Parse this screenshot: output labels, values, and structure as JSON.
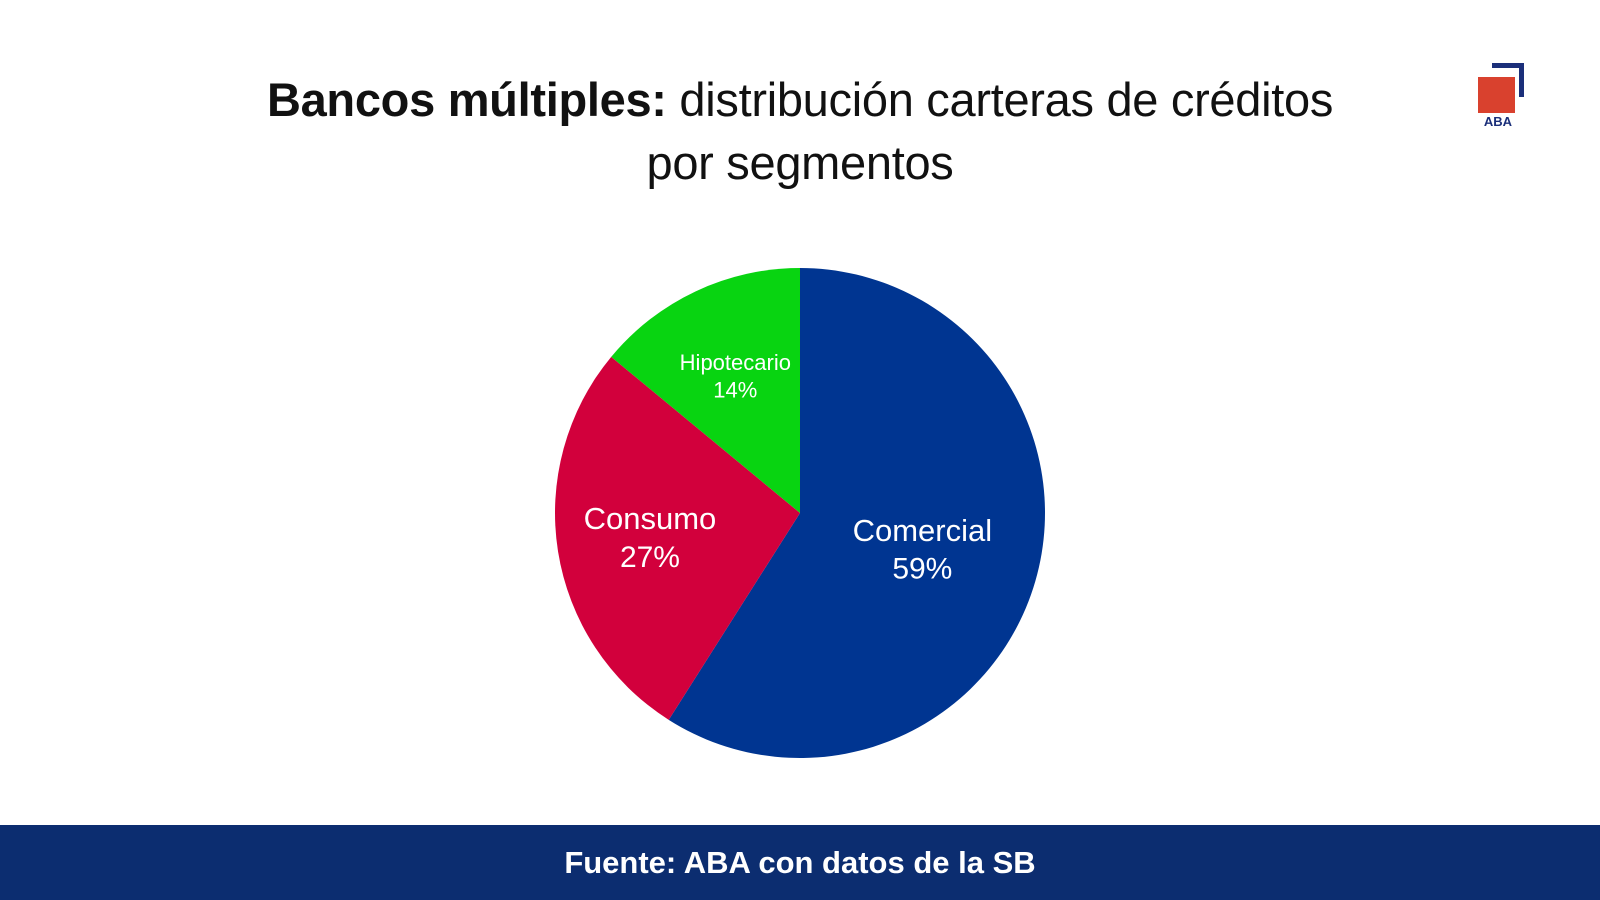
{
  "slide": {
    "title_bold": "Bancos múltiples:",
    "title_rest": " distribución carteras de créditos",
    "title_line2": "por segmentos",
    "logo_text": "ABA",
    "footer_text": "Fuente: ABA con datos de la SB"
  },
  "colors": {
    "footer_bg": "#0c2d70",
    "logo_red": "#d9412e",
    "logo_blue": "#1b2f7a"
  },
  "chart_data": {
    "type": "pie",
    "title": "Bancos múltiples: distribución carteras de créditos por segmentos",
    "slices": [
      {
        "name": "Comercial",
        "value": 59,
        "label": "59%",
        "color": "#003591"
      },
      {
        "name": "Consumo",
        "value": 27,
        "label": "27%",
        "color": "#d2003c"
      },
      {
        "name": "Hipotecario",
        "value": 14,
        "label": "14%",
        "color": "#08d411"
      }
    ],
    "start": "12 o'clock",
    "direction": "clockwise"
  }
}
